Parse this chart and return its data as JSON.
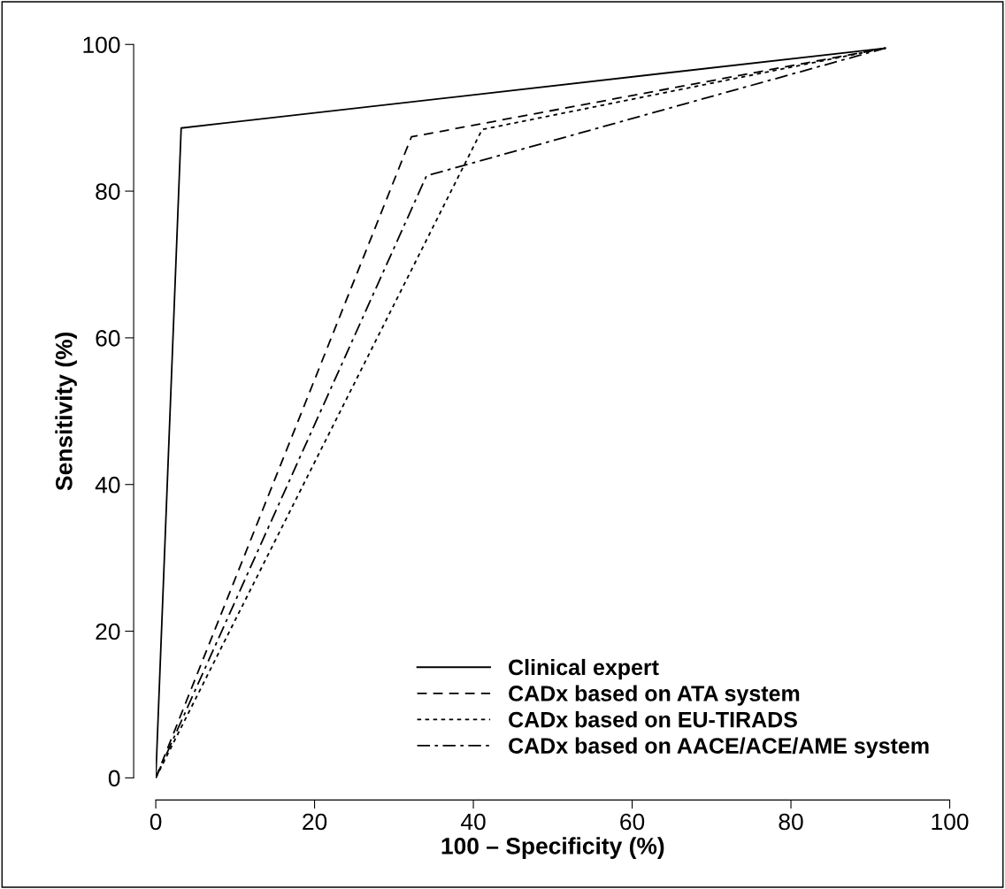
{
  "chart_data": {
    "type": "line",
    "xlabel": "100 – Specificity (%)",
    "ylabel": "Sensitivity (%)",
    "xlim": [
      0,
      100
    ],
    "ylim": [
      0,
      100
    ],
    "xticks": [
      0,
      20,
      40,
      60,
      80,
      100
    ],
    "yticks": [
      0,
      20,
      40,
      60,
      80,
      100
    ],
    "grid": false,
    "legend": "bottom right",
    "marker": "none",
    "series": [
      {
        "name": "Clinical expert",
        "color": "#000000",
        "line_style": "solid",
        "x": [
          0,
          3.2,
          91.9
        ],
        "values": [
          0,
          88.6,
          99.5
        ]
      },
      {
        "name": "CADx based on ATA system",
        "color": "#000000",
        "line_style": "dashed",
        "x": [
          0,
          32.2,
          91.9
        ],
        "values": [
          0,
          87.4,
          99.5
        ]
      },
      {
        "name": "CADx based on EU-TIRADS",
        "color": "#000000",
        "line_style": "dotted",
        "x": [
          0,
          41.1,
          91.9
        ],
        "values": [
          0,
          88.4,
          99.5
        ]
      },
      {
        "name": "CADx based on AACE/ACE/AME system",
        "color": "#000000",
        "line_style": "dashdot",
        "x": [
          0,
          34.1,
          91.9
        ],
        "values": [
          0,
          82.1,
          99.5
        ]
      }
    ]
  }
}
